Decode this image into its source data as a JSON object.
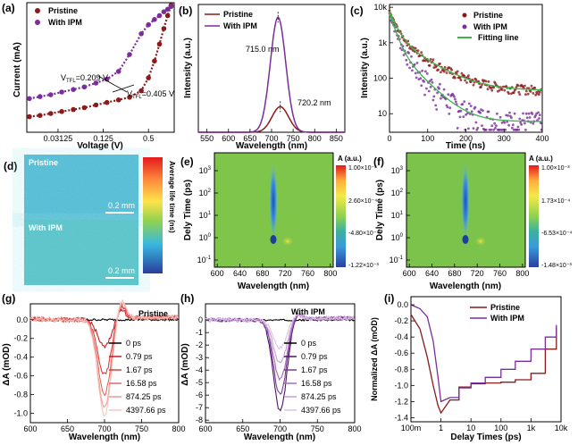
{
  "colors": {
    "pristine": "#8b1a1a",
    "ipm": "#7b2d9b",
    "fit": "#3bb54a",
    "zero": "#000000",
    "g_series": [
      "#000000",
      "#c81d25",
      "#d9403f",
      "#e36a62",
      "#ee9a94",
      "#f6c4bf"
    ],
    "h_series": [
      "#000000",
      "#4b1560",
      "#7b3b94",
      "#a56bb8",
      "#c59cd3",
      "#dcc3e5"
    ]
  },
  "panel_labels": [
    "(a)",
    "(b)",
    "(c)",
    "(d)",
    "(e)",
    "(f)",
    "(g)",
    "(h)",
    "(i)"
  ],
  "chart_data": [
    {
      "id": "a",
      "type": "scatter",
      "xscale": "log2",
      "xlabel": "Voltage (V)",
      "ylabel": "Current (mA)",
      "xticks": [
        "0.03125",
        "0.125",
        "0.5"
      ],
      "xlim": [
        0.012,
        1.1
      ],
      "legend": [
        "Pristine",
        "With IPM"
      ],
      "legend_position": "top-left",
      "annotations": [
        {
          "label": "V",
          "sub": "TFL",
          "value": "=0.209 V"
        },
        {
          "label": "V",
          "sub": "TFL",
          "value": "=0.405 V"
        }
      ],
      "series": [
        {
          "name": "Pristine",
          "x": [
            0.013,
            0.018,
            0.025,
            0.035,
            0.05,
            0.07,
            0.1,
            0.14,
            0.2,
            0.28,
            0.4,
            0.5,
            0.6,
            0.7,
            0.8,
            0.9,
            1.0
          ],
          "y_rel": [
            0.12,
            0.13,
            0.145,
            0.16,
            0.175,
            0.19,
            0.21,
            0.23,
            0.25,
            0.27,
            0.32,
            0.42,
            0.55,
            0.68,
            0.8,
            0.9,
            0.98
          ]
        },
        {
          "name": "With IPM",
          "x": [
            0.013,
            0.018,
            0.025,
            0.035,
            0.05,
            0.07,
            0.1,
            0.14,
            0.2,
            0.28,
            0.4,
            0.5,
            0.6,
            0.7,
            0.8,
            0.9,
            1.0
          ],
          "y_rel": [
            0.26,
            0.275,
            0.29,
            0.31,
            0.33,
            0.35,
            0.38,
            0.41,
            0.47,
            0.6,
            0.76,
            0.83,
            0.87,
            0.9,
            0.93,
            0.95,
            0.97
          ]
        }
      ]
    },
    {
      "id": "b",
      "type": "line",
      "xlabel": "Wavelength (nm)",
      "ylabel": "Intensity (a.u.)",
      "xticks": [
        "550",
        "600",
        "650",
        "700",
        "750",
        "800",
        "850"
      ],
      "xlim": [
        530,
        870
      ],
      "legend": [
        "Pristine",
        "With IPM"
      ],
      "legend_position": "top-left",
      "annotations": [
        "715.0 nm",
        "720.2 nm"
      ],
      "series": [
        {
          "name": "Pristine",
          "peak": 720.2,
          "rel_height": 0.2,
          "fwhm": 45
        },
        {
          "name": "With IPM",
          "peak": 715.0,
          "rel_height": 0.9,
          "fwhm": 42
        }
      ]
    },
    {
      "id": "c",
      "type": "scatter",
      "yscale": "log",
      "xlabel": "Time (ns)",
      "ylabel": "Intensity (a.u.)",
      "xticks": [
        "0",
        "100",
        "200",
        "300",
        "400"
      ],
      "xlim": [
        0,
        400
      ],
      "yticks": [
        "10",
        "100",
        "1k",
        "10k"
      ],
      "ylim": [
        3,
        12000
      ],
      "legend": [
        "Pristine",
        "With IPM",
        "Fitting line"
      ],
      "legend_position": "top-right",
      "series": [
        {
          "name": "Pristine",
          "a1": 6000,
          "t1": 15,
          "a2": 1500,
          "t2": 60,
          "floor": 45
        },
        {
          "name": "With IPM",
          "a1": 6000,
          "t1": 12,
          "a2": 900,
          "t2": 40,
          "floor": 6
        },
        {
          "name": "Fitting line"
        }
      ]
    },
    {
      "id": "d",
      "type": "heatmap",
      "labels": [
        "Pristine",
        "With IPM"
      ],
      "scalebar": "0.2 mm",
      "colorbar_label": "Average life time (ns)"
    },
    {
      "id": "e",
      "type": "heatmap",
      "yscale": "log",
      "xlabel": "Wavelength (nm)",
      "ylabel": "Dely Time (ps)",
      "xticks": [
        "600",
        "640",
        "680",
        "720",
        "760",
        "800"
      ],
      "xlim": [
        595,
        805
      ],
      "yticks": [
        {
          "b": "10",
          "e": "-1"
        },
        {
          "b": "10",
          "e": "0"
        },
        {
          "b": "10",
          "e": "1"
        },
        {
          "b": "10",
          "e": "2"
        },
        {
          "b": "10",
          "e": "3"
        }
      ],
      "colorbar_title": "A (a.u.)",
      "colorbar_ticks": [
        "1.00×10⁻³",
        "2.60×10⁻⁴",
        "-4.80×10⁻⁴",
        "-1.22×10⁻³"
      ]
    },
    {
      "id": "f",
      "type": "heatmap",
      "yscale": "log",
      "xlabel": "Wavelength (nm)",
      "ylabel": "Dely Time (ps)",
      "xticks": [
        "600",
        "640",
        "680",
        "720",
        "760",
        "800"
      ],
      "xlim": [
        595,
        805
      ],
      "yticks": [
        {
          "b": "10",
          "e": "-1"
        },
        {
          "b": "10",
          "e": "0"
        },
        {
          "b": "10",
          "e": "1"
        },
        {
          "b": "10",
          "e": "2"
        },
        {
          "b": "10",
          "e": "3"
        }
      ],
      "colorbar_title": "A (a.u.)",
      "colorbar_ticks": [
        "1.00×10⁻³",
        "1.73×10⁻⁴",
        "-6.53×10⁻⁴",
        "-1.48×10⁻³"
      ]
    },
    {
      "id": "g",
      "type": "line",
      "title": "Pristine",
      "xlabel": "Wavelength (nm)",
      "ylabel": "ΔA (mOD)",
      "xticks": [
        "600",
        "650",
        "700",
        "750",
        "800"
      ],
      "xlim": [
        600,
        800
      ],
      "yticks": [
        "0.0",
        "-0.2",
        "-0.4",
        "-0.6",
        "-0.8",
        "-1.0"
      ],
      "ylim": [
        -1.1,
        0.17
      ],
      "legend_position": "right",
      "series": [
        {
          "name": "0 ps",
          "depth": 0.0
        },
        {
          "name": "0.79 ps",
          "depth": 0.3
        },
        {
          "name": "1.67 ps",
          "depth": 0.6
        },
        {
          "name": "16.58 ps",
          "depth": 0.8
        },
        {
          "name": "874.25 ps",
          "depth": 0.95
        },
        {
          "name": "4397.66 ps",
          "depth": 1.03
        }
      ]
    },
    {
      "id": "h",
      "type": "line",
      "title": "With IPM",
      "xlabel": "Wavelength (nm)",
      "ylabel": "ΔA (mOD)",
      "xticks": [
        "600",
        "650",
        "700",
        "750",
        "800"
      ],
      "xlim": [
        600,
        800
      ],
      "yticks": [
        "0",
        "-1",
        "-2",
        "-3",
        "-4",
        "-5",
        "-6",
        "-7",
        "-8"
      ],
      "ylim": [
        -8.2,
        1.3
      ],
      "legend_position": "right",
      "series": [
        {
          "name": "0 ps",
          "depth": 0.0
        },
        {
          "name": "0.79 ps",
          "depth": 7.3
        },
        {
          "name": "1.67 ps",
          "depth": 6.0
        },
        {
          "name": "16.58 ps",
          "depth": 4.8
        },
        {
          "name": "874.25 ps",
          "depth": 3.5
        },
        {
          "name": "4397.66 ps",
          "depth": 2.3
        }
      ]
    },
    {
      "id": "i",
      "type": "line",
      "xscale": "log",
      "xlabel": "Delay Times (ps)",
      "ylabel": "Normalized ΔA (mOD)",
      "xticks": [
        "100m",
        "1",
        "10",
        "100",
        "1k",
        "10k"
      ],
      "xlim": [
        0.1,
        10000
      ],
      "yticks": [
        "0.0",
        "-0.2",
        "-0.4",
        "-0.6",
        "-0.8",
        "-1.0",
        "-1.2",
        "-1.4"
      ],
      "ylim": [
        -1.45,
        0.1
      ],
      "legend": [
        "Pristine",
        "With IPM"
      ],
      "legend_position": "top-right",
      "series": [
        {
          "name": "Pristine",
          "x": [
            0.1,
            0.2,
            0.35,
            0.55,
            0.8,
            1.0,
            2,
            4,
            10,
            30,
            100,
            300,
            1000,
            3000,
            7000
          ],
          "y": [
            -0.12,
            -0.3,
            -0.65,
            -1.0,
            -1.25,
            -1.34,
            -1.18,
            -1.02,
            -0.98,
            -0.97,
            -0.96,
            -0.93,
            -0.85,
            -0.55,
            -0.28
          ]
        },
        {
          "name": "With IPM",
          "x": [
            0.1,
            0.2,
            0.35,
            0.55,
            0.8,
            1.0,
            2,
            4,
            10,
            30,
            100,
            300,
            1000,
            3000,
            7000
          ],
          "y": [
            0.0,
            -0.05,
            -0.15,
            -0.45,
            -0.9,
            -1.2,
            -1.15,
            -1.03,
            -0.97,
            -0.9,
            -0.8,
            -0.7,
            -0.55,
            -0.4,
            -0.25
          ]
        }
      ]
    }
  ]
}
